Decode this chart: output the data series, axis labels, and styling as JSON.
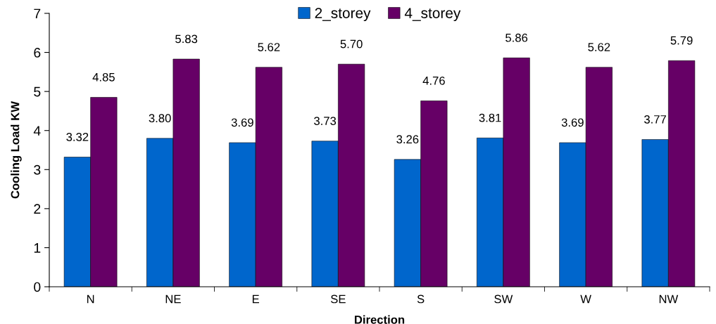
{
  "chart_data": {
    "type": "bar",
    "xlabel": "Direction",
    "ylabel": "Cooling Load KW",
    "categories": [
      "N",
      "NE",
      "E",
      "SE",
      "S",
      "SW",
      "W",
      "NW"
    ],
    "series": [
      {
        "name": "2_storey",
        "color": "#0066cc",
        "values": [
          3.32,
          3.8,
          3.69,
          3.73,
          3.26,
          3.81,
          3.69,
          3.77
        ],
        "value_labels": [
          "3.32",
          "3.80",
          "3.69",
          "3.73",
          "3.26",
          "3.81",
          "3.69",
          "3.77"
        ]
      },
      {
        "name": "4_storey",
        "color": "#660066",
        "values": [
          4.85,
          5.83,
          5.62,
          5.7,
          4.76,
          5.86,
          5.62,
          5.79
        ],
        "value_labels": [
          "4.85",
          "5.83",
          "5.62",
          "5.70",
          "4.76",
          "5.86",
          "5.62",
          "5.79"
        ]
      }
    ],
    "ylim": [
      0,
      7
    ],
    "yticks": [
      0,
      1,
      2,
      3,
      4,
      5,
      6,
      7
    ],
    "grid": false,
    "legend": "top"
  }
}
